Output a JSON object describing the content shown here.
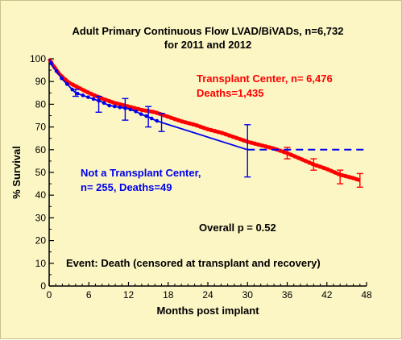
{
  "chart_data": {
    "type": "line",
    "title_line1": "Adult Primary Continuous Flow LVAD/BiVADs, n=6,732",
    "title_line2": "for 2011 and 2012",
    "xlabel": "Months post implant",
    "ylabel": "% Survival",
    "xlim": [
      0,
      48
    ],
    "ylim": [
      0,
      100
    ],
    "x_ticks": [
      "0",
      "6",
      "12",
      "18",
      "24",
      "30",
      "36",
      "42",
      "48"
    ],
    "y_ticks": [
      "0",
      "10",
      "20",
      "30",
      "40",
      "50",
      "60",
      "70",
      "80",
      "90",
      "100"
    ],
    "grid": false,
    "colors": {
      "transplant": "#ff0000",
      "non_transplant": "#0000ee"
    },
    "series": [
      {
        "name_line1": "Transplant Center, n= 6,476",
        "name_line2": "Deaths=1,435",
        "x": [
          0,
          0.5,
          1,
          1.5,
          2,
          3,
          4,
          5,
          6,
          8,
          10,
          12,
          14,
          16,
          18,
          20,
          22,
          24,
          26,
          28,
          30,
          32,
          34,
          36,
          38,
          40,
          42,
          44,
          46,
          47
        ],
        "y": [
          100,
          97.5,
          95.5,
          93.5,
          92,
          89.5,
          88,
          86.5,
          85,
          82.5,
          80.5,
          79,
          77.5,
          76.5,
          74.5,
          72.5,
          71,
          69,
          67.5,
          65.5,
          63.5,
          62,
          60.5,
          58.5,
          56,
          53.5,
          51.5,
          49,
          47.5,
          46.5
        ],
        "error_x": [
          36,
          40,
          44,
          47
        ],
        "error_low": [
          56,
          51,
          45,
          43.5
        ],
        "error_high": [
          61,
          56,
          51,
          49.5
        ]
      },
      {
        "name_line1": "Not a Transplant Center,",
        "name_line2": "n= 255, Deaths=49",
        "x": [
          0,
          0.3,
          0.6,
          1,
          1.5,
          2,
          3,
          4,
          5,
          6,
          7,
          8,
          9,
          10,
          11,
          12,
          13,
          14,
          15,
          16,
          17,
          30
        ],
        "y": [
          100,
          98,
          96.5,
          95,
          93,
          91,
          88,
          85,
          84,
          83,
          82,
          81,
          79.5,
          79,
          78.5,
          78,
          77,
          75.5,
          74.5,
          73,
          72,
          60
        ],
        "error_x": [
          4,
          7.5,
          11.5,
          15,
          17,
          30
        ],
        "error_low": [
          83.5,
          76.5,
          73,
          70,
          68,
          48
        ],
        "error_high": [
          86.5,
          83.5,
          82.5,
          79,
          76,
          71
        ],
        "extension_x": [
          30,
          48
        ],
        "extension_y": [
          60,
          60
        ]
      }
    ],
    "annotations": {
      "p_value": "Overall p = 0.52",
      "event": "Event:  Death (censored at transplant and recovery)"
    }
  }
}
